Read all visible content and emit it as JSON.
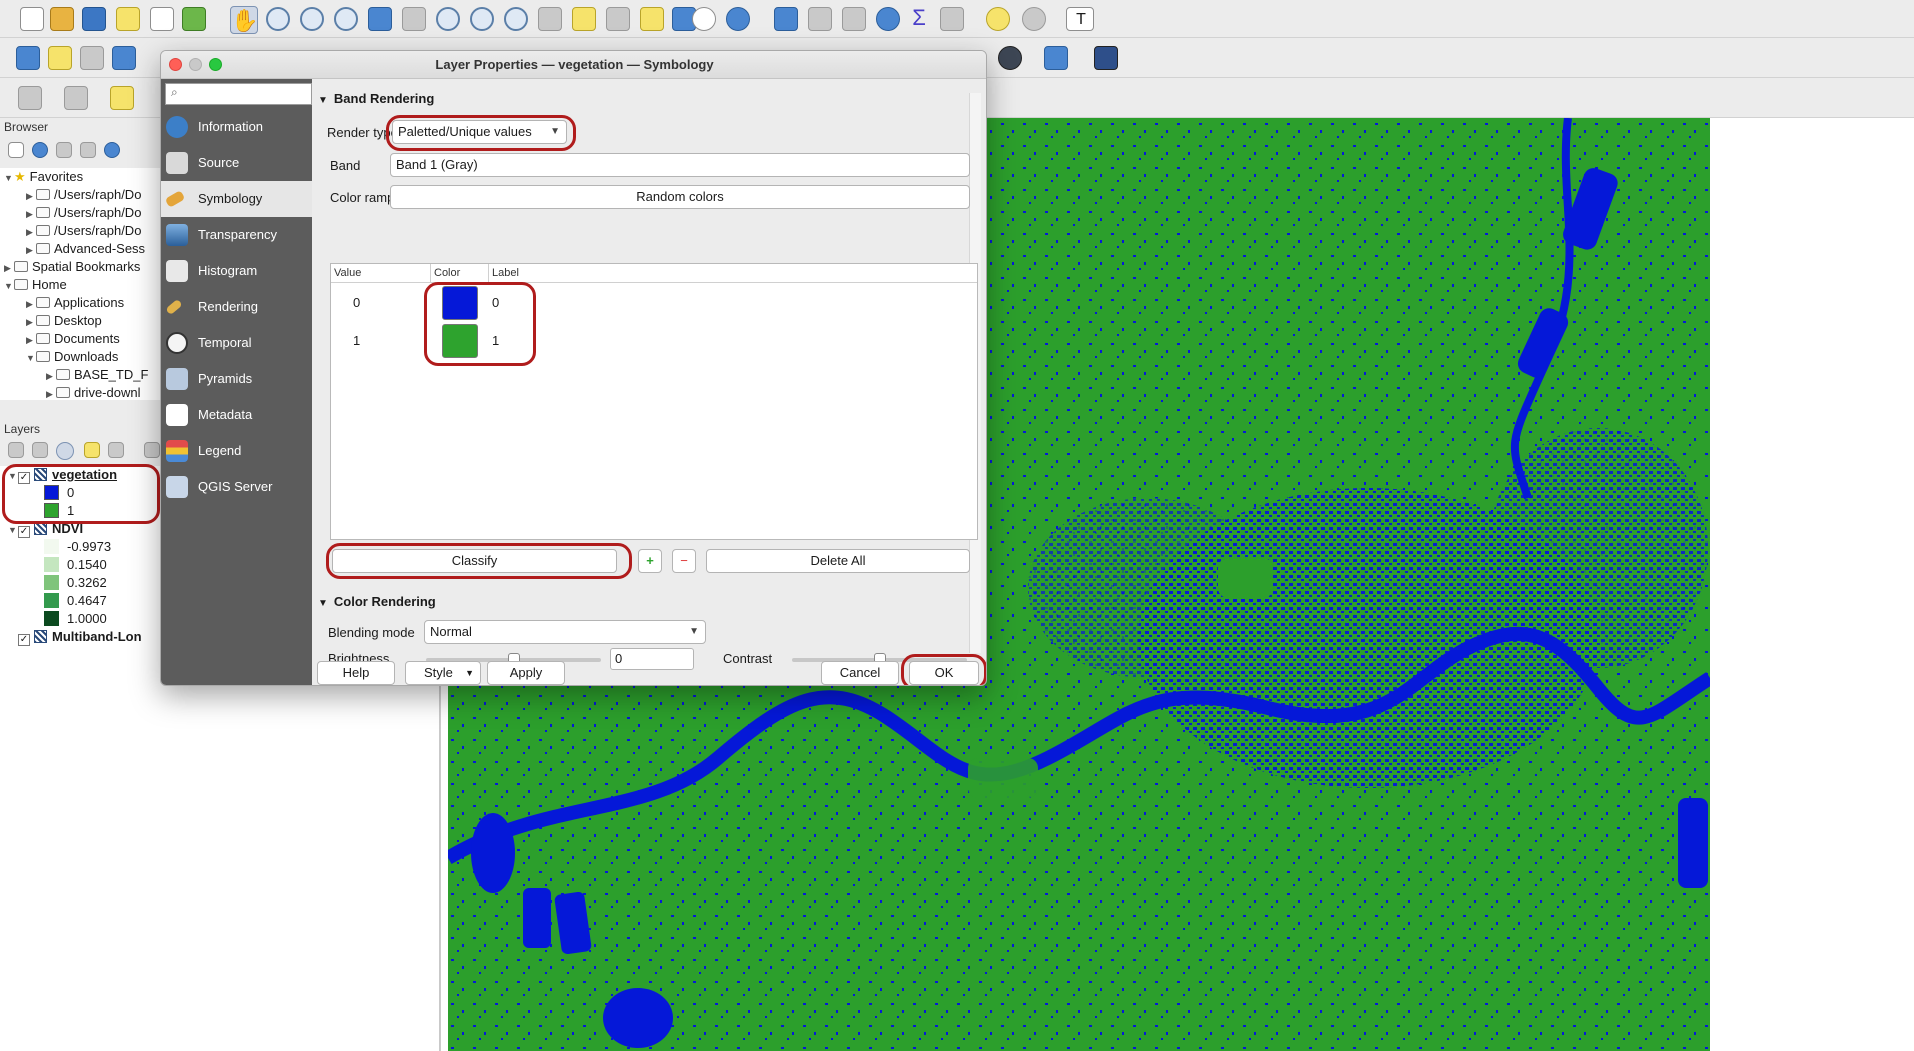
{
  "dialog": {
    "title": "Layer Properties — vegetation — Symbology",
    "sidebar": [
      {
        "label": "Information",
        "icon": "info-icon"
      },
      {
        "label": "Source",
        "icon": "source-icon"
      },
      {
        "label": "Symbology",
        "icon": "paintbrush-icon"
      },
      {
        "label": "Transparency",
        "icon": "transparency-icon"
      },
      {
        "label": "Histogram",
        "icon": "histogram-icon"
      },
      {
        "label": "Rendering",
        "icon": "rendering-icon"
      },
      {
        "label": "Temporal",
        "icon": "clock-icon"
      },
      {
        "label": "Pyramids",
        "icon": "pyramid-icon"
      },
      {
        "label": "Metadata",
        "icon": "metadata-icon"
      },
      {
        "label": "Legend",
        "icon": "legend-icon"
      },
      {
        "label": "QGIS Server",
        "icon": "server-icon"
      }
    ],
    "band_rendering": {
      "header": "Band Rendering",
      "render_type_label": "Render type",
      "render_type_value": "Paletted/Unique values",
      "band_label": "Band",
      "band_value": "Band 1 (Gray)",
      "color_ramp_label": "Color ramp",
      "color_ramp_value": "Random colors",
      "table_headers": [
        "Value",
        "Color",
        "Label"
      ],
      "rows": [
        {
          "value": "0",
          "color": "#0518d8",
          "label": "0"
        },
        {
          "value": "1",
          "color": "#2ea32e",
          "label": "1"
        }
      ],
      "classify_label": "Classify",
      "delete_all_label": "Delete All"
    },
    "color_rendering": {
      "header": "Color Rendering",
      "blending_label": "Blending mode",
      "blending_value": "Normal",
      "brightness_label": "Brightness",
      "brightness_value": "0",
      "contrast_label": "Contrast"
    },
    "buttons": {
      "help": "Help",
      "style": "Style",
      "apply": "Apply",
      "cancel": "Cancel",
      "ok": "OK"
    }
  },
  "browser": {
    "title": "Browser",
    "items": [
      {
        "label": "Favorites",
        "level": 0,
        "icon": "star-icon"
      },
      {
        "label": "/Users/raph/Do",
        "level": 1,
        "icon": "folder-icon"
      },
      {
        "label": "/Users/raph/Do",
        "level": 1,
        "icon": "folder-icon"
      },
      {
        "label": "/Users/raph/Do",
        "level": 1,
        "icon": "folder-icon"
      },
      {
        "label": "Advanced-Sess",
        "level": 1,
        "icon": "folder-icon"
      },
      {
        "label": "Spatial Bookmarks",
        "level": 0,
        "icon": "bookmark-icon"
      },
      {
        "label": "Home",
        "level": 0,
        "icon": "home-icon"
      },
      {
        "label": "Applications",
        "level": 1,
        "icon": "folder-icon"
      },
      {
        "label": "Desktop",
        "level": 1,
        "icon": "folder-icon"
      },
      {
        "label": "Documents",
        "level": 1,
        "icon": "folder-icon"
      },
      {
        "label": "Downloads",
        "level": 1,
        "icon": "folder-icon"
      },
      {
        "label": "BASE_TD_F",
        "level": 2,
        "icon": "folder-icon"
      },
      {
        "label": "drive-downl",
        "level": 2,
        "icon": "folder-icon"
      }
    ]
  },
  "layers": {
    "title": "Layers",
    "vegetation": {
      "name": "vegetation",
      "classes": [
        {
          "label": "0",
          "color": "#0518d8"
        },
        {
          "label": "1",
          "color": "#2ea32e"
        }
      ]
    },
    "ndvi": {
      "name": "NDVI",
      "classes": [
        {
          "label": "-0.9973",
          "color": "#f2f9ef"
        },
        {
          "label": "0.1540",
          "color": "#c4e6bf"
        },
        {
          "label": "0.3262",
          "color": "#7fc47b"
        },
        {
          "label": "0.4647",
          "color": "#339a4d"
        },
        {
          "label": "1.0000",
          "color": "#0b4a1f"
        }
      ]
    },
    "multiband": {
      "name": "Multiband-Lon"
    }
  },
  "map": {
    "vegetation_color": "#2c9f2c",
    "non_vegetation_color": "#0518d8"
  }
}
